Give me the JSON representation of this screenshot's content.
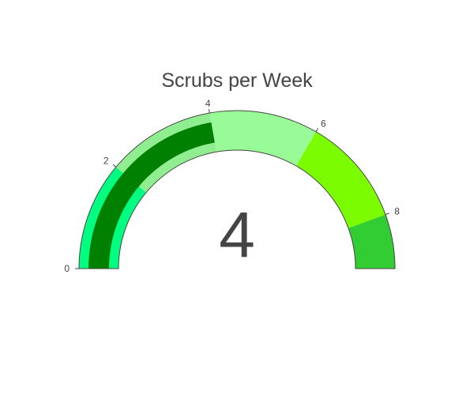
{
  "chart_data": {
    "type": "gauge",
    "title": "Scrubs per Week",
    "value": 4,
    "display_value": "4",
    "range": [
      0,
      9
    ],
    "ticks": [
      {
        "value": 0,
        "label": "0"
      },
      {
        "value": 2,
        "label": "2"
      },
      {
        "value": 4,
        "label": "4"
      },
      {
        "value": 6,
        "label": "6"
      },
      {
        "value": 8,
        "label": "8"
      }
    ],
    "steps": [
      {
        "range": [
          0,
          2
        ],
        "color": "#00ff80"
      },
      {
        "range": [
          2,
          4
        ],
        "color": "#90ee90"
      },
      {
        "range": [
          4,
          6
        ],
        "color": "#98fb98"
      },
      {
        "range": [
          6,
          8
        ],
        "color": "#7cfc00"
      },
      {
        "range": [
          8,
          9
        ],
        "color": "#32cd32"
      }
    ],
    "bar_color": "#008000",
    "border_color": "#444444"
  }
}
